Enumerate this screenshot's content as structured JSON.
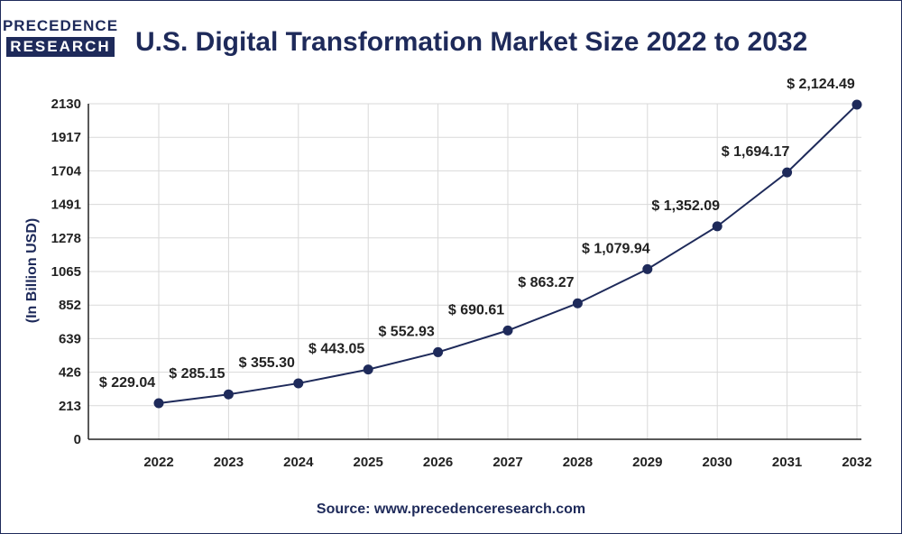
{
  "logo": {
    "line1": "PRECEDENCE",
    "line2": "RESEARCH"
  },
  "title": "U.S. Digital Transformation Market Size 2022 to 2032",
  "source": "Source: www.precedenceresearch.com",
  "colors": {
    "primary": "#1e2a5a",
    "grid": "#d9d9d9",
    "axis": "#222222"
  },
  "chart_data": {
    "type": "line",
    "title": "U.S. Digital Transformation Market Size 2022 to 2032",
    "xlabel": "",
    "ylabel": "(In Billion USD)",
    "ylim": [
      0,
      2130
    ],
    "yticks": [
      0,
      213,
      426,
      639,
      852,
      1065,
      1278,
      1491,
      1704,
      1917,
      2130
    ],
    "grid": true,
    "categories": [
      "2022",
      "2023",
      "2024",
      "2025",
      "2026",
      "2027",
      "2028",
      "2029",
      "2030",
      "2031",
      "2032"
    ],
    "series": [
      {
        "name": "U.S. Digital Transformation Market Size",
        "values": [
          229.04,
          285.15,
          355.3,
          443.05,
          552.93,
          690.61,
          863.27,
          1079.94,
          1352.09,
          1694.17,
          2124.49
        ],
        "labels": [
          "$ 229.04",
          "$ 285.15",
          "$ 355.30",
          "$ 443.05",
          "$ 552.93",
          "$ 690.61",
          "$ 863.27",
          "$ 1,079.94",
          "$ 1,352.09",
          "$ 1,694.17",
          "$ 2,124.49"
        ]
      }
    ]
  }
}
